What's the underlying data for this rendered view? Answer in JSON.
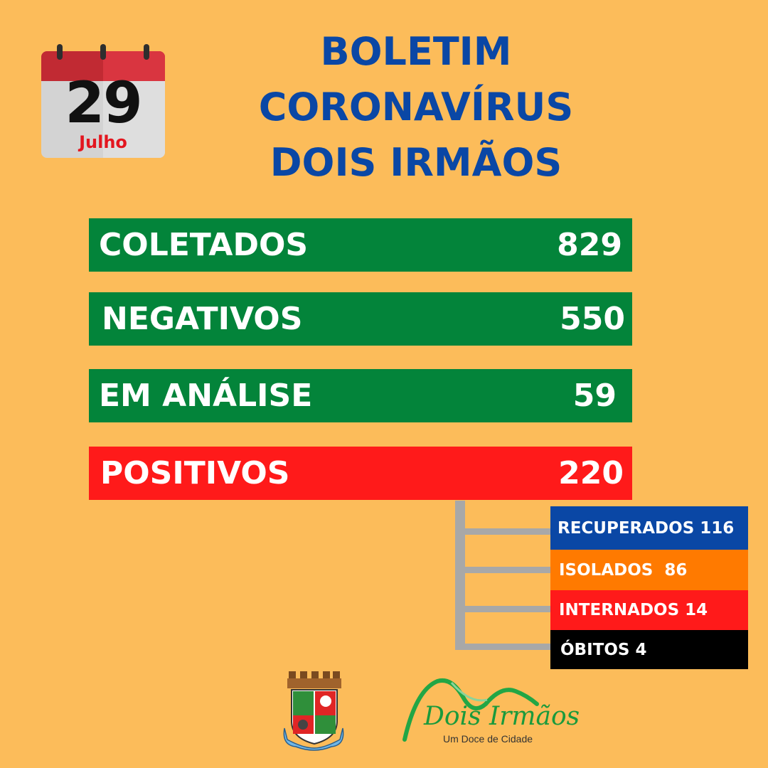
{
  "calendar": {
    "day": "29",
    "month": "Julho",
    "icon": "calendar-icon"
  },
  "title": {
    "line1": "BOLETIM",
    "line2": "CORONAVÍRUS",
    "line3": "DOIS IRMÃOS"
  },
  "stats": [
    {
      "label": "COLETADOS",
      "value": "829"
    },
    {
      "label": "NEGATIVOS",
      "value": "550"
    },
    {
      "label": "EM ANÁLISE",
      "value": "59"
    },
    {
      "label": "POSITIVOS",
      "value": "220"
    }
  ],
  "positives_breakdown": [
    {
      "text": "RECUPERADOS 116",
      "color": "#0A47A5"
    },
    {
      "text": "ISOLADOS  86",
      "color": "#FF7A00"
    },
    {
      "text": "INTERNADOS 14",
      "color": "#FF1A1A"
    },
    {
      "text": "ÓBITOS 4",
      "color": "#000000"
    }
  ],
  "colors": {
    "background": "#FCBC5A",
    "title": "#0A47A5",
    "green": "#03843A",
    "red": "#FF1A1A"
  },
  "footer": {
    "crest_icon": "municipal-coat-of-arms-icon",
    "city_logo": {
      "name": "Dois Irmãos",
      "slogan": "Um Doce de Cidade"
    }
  }
}
